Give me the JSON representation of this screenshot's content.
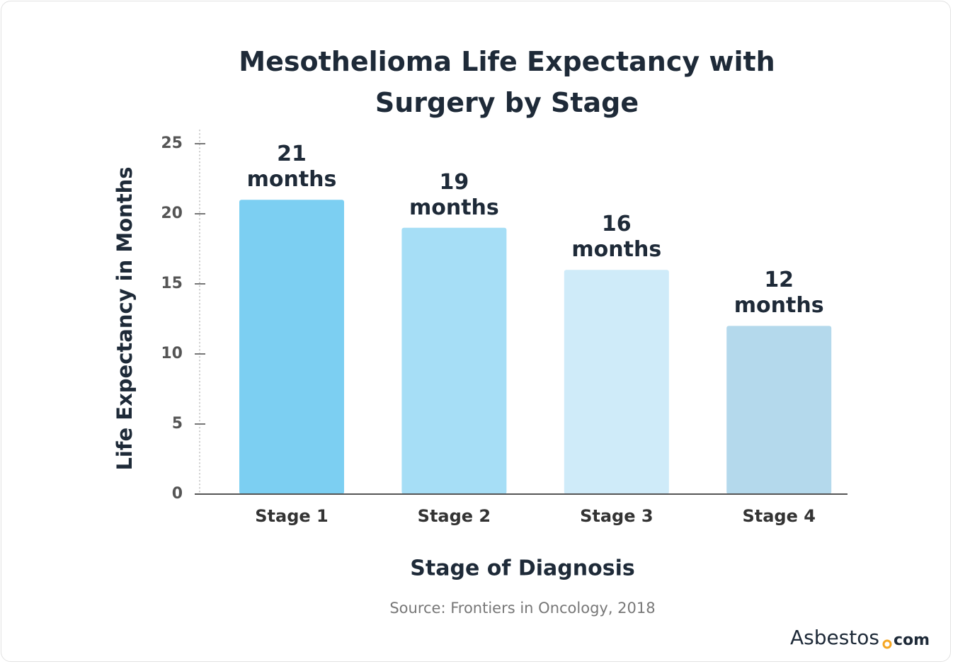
{
  "chart_data": {
    "type": "bar",
    "title": "Mesothelioma Life Expectancy with Surgery by Stage",
    "x_label": "Stage of Diagnosis",
    "y_label": "Life Expectancy in Months",
    "categories": [
      "Stage 1",
      "Stage 2",
      "Stage 3",
      "Stage 4"
    ],
    "values": [
      21,
      19,
      16,
      12
    ],
    "value_labels": [
      "21 months",
      "19 months",
      "16 months",
      "12 months"
    ],
    "colors": [
      "#7ccff2",
      "#a6def6",
      "#cfebf9",
      "#b4d9ec"
    ],
    "ylim": [
      0,
      26
    ],
    "yticks": [
      0,
      5,
      10,
      15,
      20,
      25
    ],
    "source": "Source: Frontiers in Oncology, 2018",
    "brand": [
      "Asbestos",
      "com"
    ]
  }
}
